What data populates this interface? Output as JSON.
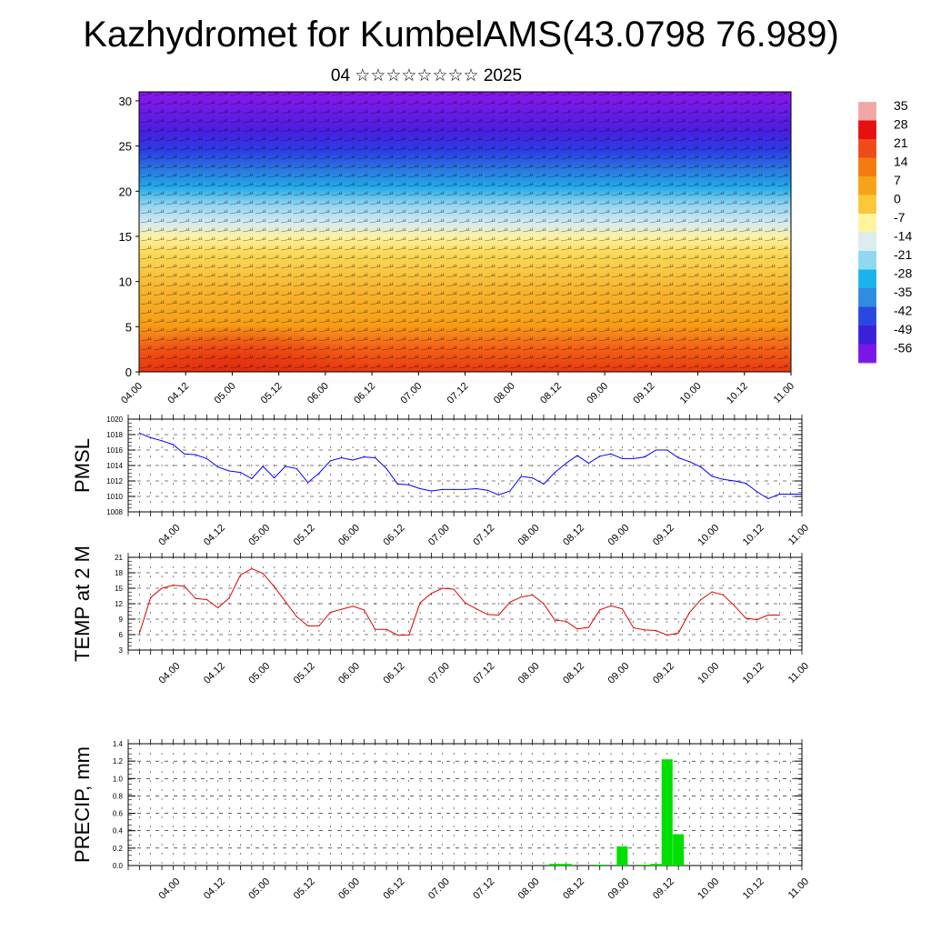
{
  "page": {
    "title": "Kazhydromet for KumbelAMS(43.0798 76.989)",
    "subtitle": "04 ☆☆☆☆☆☆☆☆ 2025"
  },
  "chart_data": [
    {
      "type": "heatmap",
      "name": "cross-section",
      "description_of_fill": "vertical cross-section of temperature with wind barbs",
      "y_ticks": [
        "0",
        "5",
        "10",
        "15",
        "20",
        "25",
        "30"
      ],
      "ylim": [
        0,
        31
      ],
      "x_ticks": [
        "04.00",
        "04.12",
        "05.00",
        "05.12",
        "06.00",
        "06.12",
        "07.00",
        "07.12",
        "08.00",
        "08.12",
        "09.00",
        "09.12",
        "10.00",
        "10.12",
        "11.00"
      ],
      "colorbar_labels": [
        "35",
        "28",
        "21",
        "14",
        "7",
        "0",
        "-7",
        "-14",
        "-21",
        "-28",
        "-35",
        "-42",
        "-49",
        "-56"
      ],
      "colorbar_colors": [
        "#f2a7a7",
        "#e61010",
        "#ef4a1c",
        "#f57a10",
        "#f7a318",
        "#fbc83a",
        "#fff5a0",
        "#dcecef",
        "#8fd8f0",
        "#19b4eb",
        "#2f8ce0",
        "#2a48e0",
        "#3a20d8",
        "#7a16e6"
      ]
    },
    {
      "type": "line",
      "name": "pmsl",
      "ylabel": "PMSL",
      "ylim": [
        1008,
        1020
      ],
      "y_ticks": [
        "1008",
        "1010",
        "1012",
        "1014",
        "1016",
        "1018",
        "1020"
      ],
      "x_ticks": [
        "04.00",
        "04.12",
        "05.00",
        "05.12",
        "06.00",
        "06.12",
        "07.00",
        "07.12",
        "08.00",
        "08.12",
        "09.00",
        "09.12",
        "10.00",
        "10.12",
        "11.00"
      ],
      "color": "#0000ff",
      "series": [
        {
          "x": [
            -9,
            -6,
            -3,
            0,
            3,
            6,
            9,
            12,
            15,
            18,
            21,
            24,
            27,
            30,
            33,
            36,
            39,
            42,
            45,
            48,
            51,
            54,
            57,
            60,
            63,
            66,
            69,
            72,
            75,
            78,
            81,
            84,
            87,
            90,
            93,
            96,
            99,
            102,
            105,
            108,
            111,
            114,
            117,
            120,
            123,
            126,
            129,
            132,
            135,
            138,
            141,
            144,
            147,
            150,
            153,
            156,
            159,
            162,
            165,
            168
          ],
          "values": [
            1018.2,
            1017.6,
            1017.2,
            1016.7,
            1015.5,
            1015.4,
            1014.9,
            1013.8,
            1013.3,
            1013.1,
            1012.3,
            1013.9,
            1012.4,
            1013.9,
            1013.6,
            1011.8,
            1013.0,
            1014.6,
            1015.0,
            1014.7,
            1015.1,
            1015.0,
            1013.6,
            1011.6,
            1011.5,
            1011.0,
            1010.7,
            1010.9,
            1010.9,
            1010.9,
            1011.0,
            1010.8,
            1010.2,
            1010.7,
            1012.6,
            1012.4,
            1011.6,
            1013.1,
            1014.3,
            1015.3,
            1014.3,
            1015.2,
            1015.5,
            1014.9,
            1014.9,
            1015.1,
            1016.0,
            1016.0,
            1015.0,
            1014.5,
            1013.8,
            1012.6,
            1012.2,
            1012.0,
            1011.7,
            1010.6,
            1009.7,
            1010.3,
            1010.3,
            1010.3
          ]
        }
      ]
    },
    {
      "type": "line",
      "name": "temp2m",
      "ylabel": "TEMP at 2 M",
      "ylim": [
        3,
        21
      ],
      "y_ticks": [
        "3",
        "6",
        "9",
        "12",
        "15",
        "18",
        "21"
      ],
      "x_ticks": [
        "04.00",
        "04.12",
        "05.00",
        "05.12",
        "06.00",
        "06.12",
        "07.00",
        "07.12",
        "08.00",
        "08.12",
        "09.00",
        "09.12",
        "10.00",
        "10.12",
        "11.00"
      ],
      "color": "#e00000",
      "series": [
        {
          "x": [
            -9,
            -6,
            -3,
            0,
            3,
            6,
            9,
            12,
            15,
            18,
            21,
            24,
            27,
            30,
            33,
            36,
            39,
            42,
            45,
            48,
            51,
            54,
            57,
            60,
            63,
            66,
            69,
            72,
            75,
            78,
            81,
            84,
            87,
            90,
            93,
            96,
            99,
            102,
            105,
            108,
            111,
            114,
            117,
            120,
            123,
            126,
            129,
            132,
            135,
            138,
            141,
            144,
            147,
            150,
            153,
            156,
            159,
            162
          ],
          "values": [
            6.2,
            13.2,
            15.0,
            15.6,
            15.4,
            13.0,
            12.8,
            11.2,
            13.1,
            17.6,
            18.8,
            17.9,
            15.3,
            12.4,
            9.5,
            7.7,
            7.7,
            10.3,
            10.9,
            11.5,
            10.8,
            7.0,
            7.0,
            5.9,
            5.9,
            12.2,
            14.0,
            15.0,
            14.8,
            12.2,
            11.0,
            9.9,
            9.8,
            12.3,
            13.3,
            13.7,
            12.0,
            8.8,
            8.6,
            7.1,
            7.4,
            10.8,
            11.6,
            11.0,
            7.3,
            6.9,
            6.8,
            5.9,
            6.3,
            10.3,
            12.8,
            14.3,
            13.7,
            11.6,
            9.2,
            8.9,
            9.8,
            9.8
          ]
        }
      ]
    },
    {
      "type": "bar",
      "name": "precip",
      "ylabel": "PRECIP, mm",
      "ylim": [
        0,
        1.4
      ],
      "y_ticks": [
        "0.0",
        "0.2",
        "0.4",
        "0.6",
        "0.8",
        "1.0",
        "1.2",
        "1.4"
      ],
      "x_ticks": [
        "04.00",
        "04.12",
        "05.00",
        "05.12",
        "06.00",
        "06.12",
        "07.00",
        "07.12",
        "08.00",
        "08.12",
        "09.00",
        "09.12",
        "10.00",
        "10.12",
        "11.00"
      ],
      "color": "#00e000",
      "bars": [
        {
          "x": 102,
          "value": 0.02
        },
        {
          "x": 105,
          "value": 0.02
        },
        {
          "x": 114,
          "value": 0.01
        },
        {
          "x": 120,
          "value": 0.22
        },
        {
          "x": 126,
          "value": 0.01
        },
        {
          "x": 129,
          "value": 0.02
        },
        {
          "x": 132,
          "value": 1.22
        },
        {
          "x": 135,
          "value": 0.36
        }
      ]
    }
  ]
}
